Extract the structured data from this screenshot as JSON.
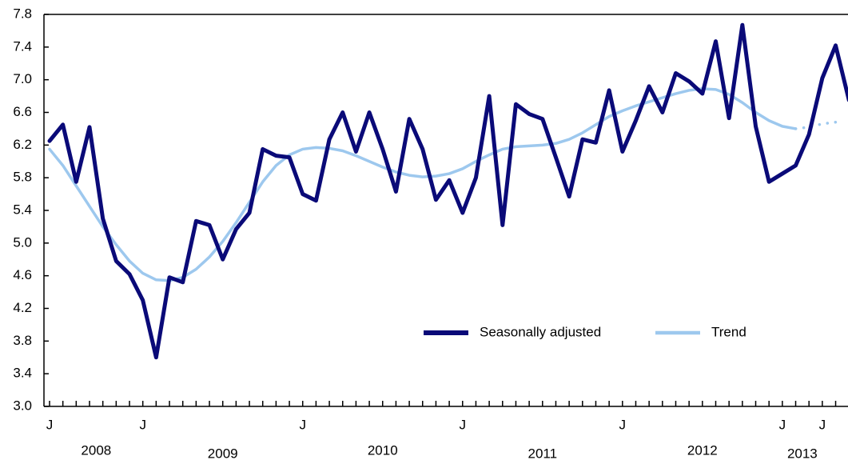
{
  "chart_data": {
    "type": "line",
    "categories": [
      "J",
      null,
      null,
      null,
      null,
      null,
      null,
      "J",
      null,
      null,
      null,
      null,
      null,
      null,
      null,
      null,
      null,
      null,
      null,
      "J",
      null,
      null,
      null,
      null,
      null,
      null,
      null,
      null,
      null,
      null,
      null,
      "J",
      null,
      null,
      null,
      null,
      null,
      null,
      null,
      null,
      null,
      null,
      null,
      "J",
      null,
      null,
      null,
      null,
      null,
      null,
      null,
      null,
      null,
      null,
      null,
      "J",
      null,
      null,
      "J",
      null,
      null
    ],
    "years": [
      "2008",
      "2009",
      "2010",
      "2011",
      "2012",
      "2013"
    ],
    "series": [
      {
        "name": "Seasonally adjusted",
        "color": "#0a0a78",
        "width": 5,
        "values": [
          6.25,
          6.45,
          5.75,
          6.42,
          5.3,
          4.78,
          4.62,
          4.3,
          3.6,
          4.58,
          4.52,
          5.27,
          5.22,
          4.8,
          5.17,
          5.37,
          6.15,
          6.07,
          6.05,
          5.6,
          5.52,
          6.27,
          6.6,
          6.12,
          6.6,
          6.15,
          5.63,
          6.52,
          6.15,
          5.53,
          5.77,
          5.37,
          5.8,
          6.8,
          5.22,
          6.7,
          6.58,
          6.52,
          6.05,
          5.57,
          6.27,
          6.23,
          6.87,
          6.12,
          6.5,
          6.92,
          6.6,
          7.08,
          6.98,
          6.83,
          7.47,
          6.53,
          7.67,
          6.43,
          5.75,
          5.85,
          5.95,
          6.33,
          7.02,
          7.42,
          6.75
        ]
      },
      {
        "name": "Trend",
        "color": "#9dc8ee",
        "width": 3.5,
        "dotted_after": 56,
        "values": [
          6.15,
          5.95,
          5.7,
          5.45,
          5.2,
          4.98,
          4.78,
          4.63,
          4.55,
          4.54,
          4.58,
          4.68,
          4.83,
          5.02,
          5.25,
          5.5,
          5.75,
          5.95,
          6.08,
          6.15,
          6.17,
          6.16,
          6.13,
          6.07,
          6.0,
          5.93,
          5.87,
          5.83,
          5.81,
          5.82,
          5.85,
          5.91,
          6.0,
          6.08,
          6.15,
          6.18,
          6.19,
          6.2,
          6.22,
          6.27,
          6.35,
          6.45,
          6.55,
          6.62,
          6.68,
          6.73,
          6.78,
          6.83,
          6.87,
          6.89,
          6.88,
          6.82,
          6.72,
          6.6,
          6.5,
          6.43,
          6.4,
          6.42,
          6.46,
          6.48,
          null
        ]
      }
    ],
    "ylim": [
      3.0,
      7.8
    ],
    "yticks": [
      {
        "value": 3.0,
        "label": "3.0"
      },
      3.4,
      3.8,
      4.2,
      4.6,
      {
        "value": 5.0,
        "label": "5.0"
      },
      5.4,
      5.8,
      6.2,
      6.6,
      {
        "value": 7.0,
        "label": "7.0"
      },
      7.4,
      7.8
    ],
    "grid": false
  }
}
